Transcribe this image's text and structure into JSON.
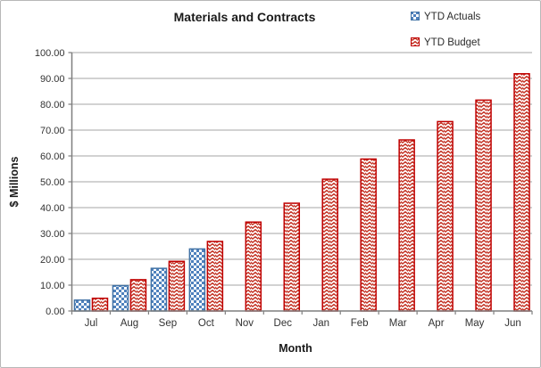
{
  "chart_data": {
    "type": "bar",
    "title": "Materials and Contracts",
    "xlabel": "Month",
    "ylabel": "$ Millions",
    "categories": [
      "Jul",
      "Aug",
      "Sep",
      "Oct",
      "Nov",
      "Dec",
      "Jan",
      "Feb",
      "Mar",
      "Apr",
      "May",
      "Jun"
    ],
    "series": [
      {
        "name": "YTD Actuals",
        "pattern": "checker",
        "fill_color": "#4f81bd",
        "border_color": "#4172a5",
        "values": [
          4.2,
          9.8,
          16.5,
          24.0,
          null,
          null,
          null,
          null,
          null,
          null,
          null,
          null
        ]
      },
      {
        "name": "YTD Budget",
        "pattern": "zigzag",
        "fill_color": "#c5392b",
        "border_color": "#c00000",
        "values": [
          4.9,
          12.1,
          19.2,
          26.9,
          34.4,
          41.7,
          51.0,
          58.8,
          66.2,
          73.3,
          81.6,
          91.8
        ]
      }
    ],
    "ylim": [
      0,
      100
    ],
    "y_tick_step": 10,
    "y_tick_decimals": 2,
    "grid": true,
    "legend_position": "top-right",
    "gridline_color": "#a6a6a6",
    "axis_color": "#7f7f7f",
    "tick_label_color": "#333333"
  }
}
